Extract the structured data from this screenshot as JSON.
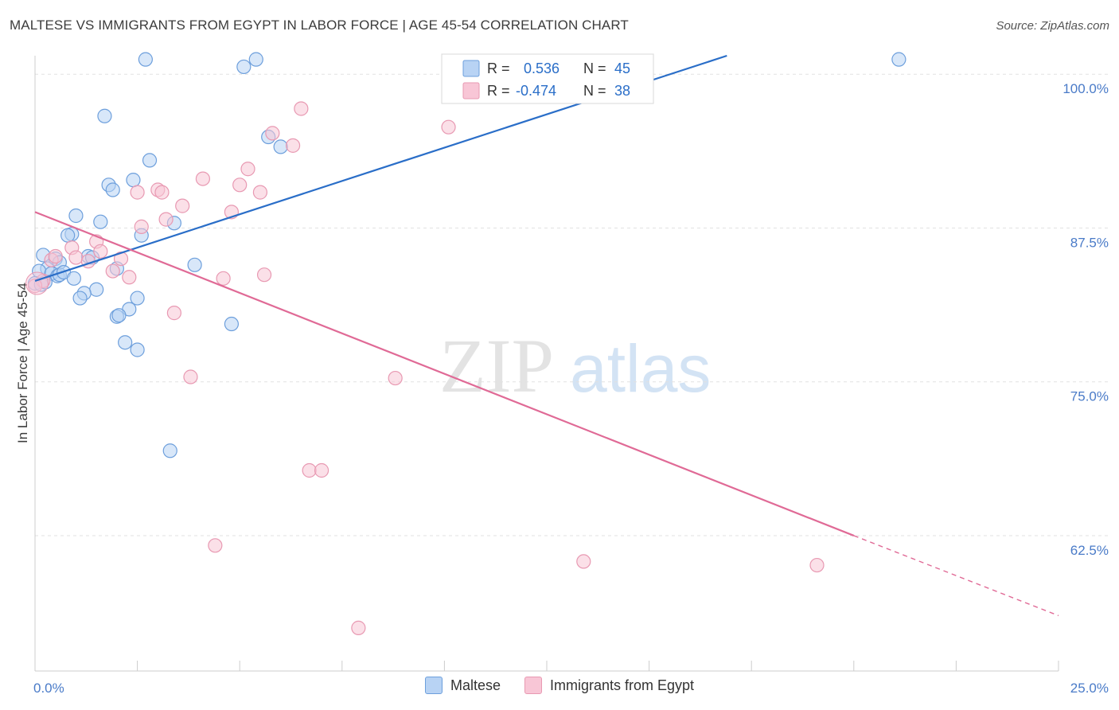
{
  "header": {
    "title": "MALTESE VS IMMIGRANTS FROM EGYPT IN LABOR FORCE | AGE 45-54 CORRELATION CHART",
    "source": "Source: ZipAtlas.com"
  },
  "watermark": {
    "zip": "ZIP",
    "atlas": "atlas"
  },
  "colors": {
    "blue_fill": "#b8d3f4",
    "blue_stroke": "#6d9fdc",
    "blue_line": "#2a6ec8",
    "pink_fill": "#f8c6d6",
    "pink_stroke": "#e899b2",
    "pink_line": "#e06a96",
    "tick_text": "#4a7bc8"
  },
  "legend": {
    "rows": [
      {
        "r_label": "R =",
        "r_value": "0.536",
        "n_label": "N =",
        "n_value": "45"
      },
      {
        "r_label": "R =",
        "r_value": "-0.474",
        "n_label": "N =",
        "n_value": "38"
      }
    ]
  },
  "bottom_legend": {
    "series1": "Maltese",
    "series2": "Immigrants from Egypt"
  },
  "chart_data": {
    "type": "scatter",
    "title": "MALTESE VS IMMIGRANTS FROM EGYPT IN LABOR FORCE | AGE 45-54 CORRELATION CHART",
    "xlabel": "",
    "ylabel": "In Labor Force | Age 45-54",
    "xlim": [
      0,
      25
    ],
    "ylim": [
      51.5,
      101.5
    ],
    "x_tick_labels": [
      {
        "value": 0,
        "label": "0.0%"
      },
      {
        "value": 25,
        "label": "25.0%"
      }
    ],
    "y_tick_labels": [
      {
        "value": 100,
        "label": "100.0%"
      },
      {
        "value": 87.5,
        "label": "87.5%"
      },
      {
        "value": 75,
        "label": "75.0%"
      },
      {
        "value": 62.5,
        "label": "62.5%"
      }
    ],
    "grid": true,
    "series": [
      {
        "name": "Maltese",
        "R": 0.536,
        "N": 45,
        "trend": {
          "x": [
            0,
            16.9
          ],
          "y": [
            83.2,
            101.5
          ],
          "dashed_to": null
        },
        "points": [
          [
            2.7,
            101.2
          ],
          [
            5.1,
            100.6
          ],
          [
            5.4,
            101.2
          ],
          [
            21.1,
            101.2
          ],
          [
            1.7,
            96.6
          ],
          [
            5.7,
            94.9
          ],
          [
            6.0,
            94.1
          ],
          [
            2.8,
            93.0
          ],
          [
            2.4,
            91.4
          ],
          [
            1.8,
            91.0
          ],
          [
            1.9,
            90.6
          ],
          [
            1.0,
            88.5
          ],
          [
            1.6,
            88.0
          ],
          [
            3.4,
            87.9
          ],
          [
            0.9,
            87.0
          ],
          [
            0.8,
            86.9
          ],
          [
            2.6,
            86.9
          ],
          [
            0.2,
            85.3
          ],
          [
            0.5,
            85.0
          ],
          [
            0.6,
            84.7
          ],
          [
            1.3,
            85.2
          ],
          [
            1.4,
            85.1
          ],
          [
            3.9,
            84.5
          ],
          [
            0.3,
            84.2
          ],
          [
            0.1,
            84.0
          ],
          [
            0.4,
            83.8
          ],
          [
            0.55,
            83.6
          ],
          [
            0.6,
            83.7
          ],
          [
            0.7,
            83.9
          ],
          [
            0.95,
            83.4
          ],
          [
            2.0,
            84.2
          ],
          [
            1.5,
            82.5
          ],
          [
            1.2,
            82.2
          ],
          [
            1.1,
            81.8
          ],
          [
            2.5,
            81.8
          ],
          [
            2.3,
            80.9
          ],
          [
            2.0,
            80.3
          ],
          [
            2.05,
            80.4
          ],
          [
            4.8,
            79.7
          ],
          [
            2.2,
            78.2
          ],
          [
            2.5,
            77.6
          ],
          [
            3.3,
            69.4
          ],
          [
            0.0,
            83.0
          ],
          [
            0.15,
            82.9
          ],
          [
            0.25,
            83.1
          ]
        ]
      },
      {
        "name": "Immigrants from Egypt",
        "R": -0.474,
        "N": 38,
        "trend": {
          "x": [
            0,
            20.0
          ],
          "y": [
            88.8,
            62.5
          ],
          "dashed_to": [
            25.0,
            56.0
          ]
        },
        "points": [
          [
            6.5,
            97.2
          ],
          [
            10.1,
            95.7
          ],
          [
            5.8,
            95.2
          ],
          [
            6.3,
            94.2
          ],
          [
            5.2,
            92.3
          ],
          [
            4.1,
            91.5
          ],
          [
            5.0,
            91.0
          ],
          [
            5.5,
            90.4
          ],
          [
            2.5,
            90.4
          ],
          [
            3.0,
            90.6
          ],
          [
            3.1,
            90.4
          ],
          [
            3.6,
            89.3
          ],
          [
            4.8,
            88.8
          ],
          [
            3.2,
            88.2
          ],
          [
            2.6,
            87.6
          ],
          [
            1.5,
            86.4
          ],
          [
            0.9,
            85.9
          ],
          [
            1.6,
            85.6
          ],
          [
            1.0,
            85.1
          ],
          [
            1.3,
            84.8
          ],
          [
            2.1,
            85.0
          ],
          [
            1.9,
            84.0
          ],
          [
            2.3,
            83.5
          ],
          [
            4.6,
            83.4
          ],
          [
            5.6,
            83.7
          ],
          [
            0.4,
            84.9
          ],
          [
            0.5,
            85.2
          ],
          [
            0.2,
            83.2
          ],
          [
            0.0,
            82.8
          ],
          [
            3.4,
            80.6
          ],
          [
            3.8,
            75.4
          ],
          [
            8.8,
            75.3
          ],
          [
            6.7,
            67.8
          ],
          [
            7.0,
            67.8
          ],
          [
            4.4,
            61.7
          ],
          [
            13.4,
            60.4
          ],
          [
            19.1,
            60.1
          ],
          [
            7.9,
            55.0
          ]
        ]
      }
    ]
  }
}
